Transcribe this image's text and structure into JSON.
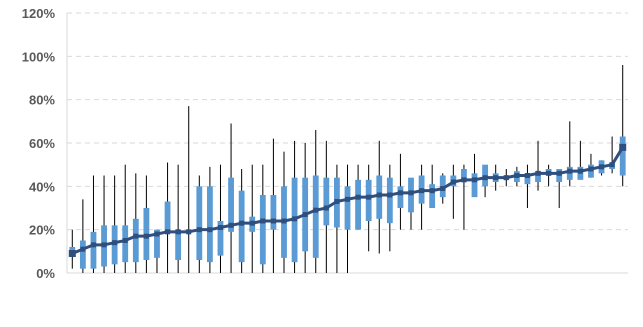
{
  "chart_data": {
    "type": "line",
    "title": "",
    "xlabel": "",
    "ylabel": "",
    "ylim": [
      0,
      120
    ],
    "y_ticks": [
      "0%",
      "20%",
      "40%",
      "60%",
      "80%",
      "100%",
      "120%"
    ],
    "y_tick_values": [
      0,
      20,
      40,
      60,
      80,
      100,
      120
    ],
    "grid": "horizontal dashed",
    "legend": "none",
    "colors": {
      "box": "#5b9bd5",
      "line": "#2f4f7f",
      "whisker": "#000000",
      "grid": "#d9d9d9",
      "axis": "#d9d9d9"
    },
    "series": [
      {
        "role": "median-line",
        "values": [
          9,
          11,
          13,
          13,
          14,
          15,
          17,
          17,
          18,
          19,
          19,
          19,
          20,
          20,
          21,
          22,
          23,
          23,
          24,
          24,
          24,
          25,
          27,
          29,
          30,
          33,
          34,
          35,
          35,
          36,
          36,
          37,
          37,
          38,
          38,
          39,
          42,
          43,
          43,
          44,
          44,
          44,
          45,
          45,
          46,
          46,
          46,
          47,
          47,
          48,
          49,
          50,
          58
        ]
      },
      {
        "role": "box-low",
        "values": [
          8,
          2,
          2,
          3,
          4,
          5,
          5,
          6,
          7,
          19,
          6,
          19,
          6,
          5,
          8,
          19,
          5,
          19,
          4,
          20,
          7,
          5,
          10,
          7,
          22,
          21,
          20,
          20,
          24,
          25,
          23,
          30,
          28,
          32,
          30,
          35,
          40,
          42,
          35,
          40,
          42,
          43,
          42,
          41,
          42,
          45,
          42,
          43,
          43,
          44,
          46,
          48,
          45
        ]
      },
      {
        "role": "box-high",
        "values": [
          12,
          15,
          19,
          22,
          22,
          22,
          25,
          30,
          20,
          33,
          20,
          20,
          40,
          40,
          24,
          44,
          38,
          26,
          36,
          36,
          40,
          44,
          44,
          45,
          44,
          44,
          40,
          43,
          43,
          45,
          44,
          40,
          44,
          45,
          41,
          45,
          45,
          48,
          46,
          50,
          46,
          45,
          47,
          46,
          47,
          48,
          48,
          49,
          49,
          50,
          52,
          51,
          63
        ]
      },
      {
        "role": "whisker-low",
        "values": [
          2,
          0,
          0,
          0,
          0,
          0,
          0,
          0,
          0,
          0,
          0,
          0,
          0,
          0,
          0,
          0,
          0,
          0,
          0,
          0,
          0,
          0,
          0,
          0,
          0,
          0,
          0,
          20,
          10,
          9,
          10,
          20,
          20,
          20,
          30,
          32,
          25,
          20,
          38,
          35,
          38,
          40,
          40,
          30,
          38,
          40,
          30,
          40,
          44,
          44,
          45,
          46,
          40
        ]
      },
      {
        "role": "whisker-high",
        "values": [
          20,
          34,
          45,
          45,
          45,
          50,
          46,
          45,
          20,
          51,
          50,
          77,
          45,
          49,
          50,
          69,
          48,
          50,
          50,
          62,
          56,
          61,
          60,
          66,
          61,
          50,
          50,
          50,
          50,
          61,
          50,
          55,
          40,
          50,
          50,
          46,
          50,
          50,
          55,
          48,
          50,
          48,
          49,
          50,
          61,
          50,
          48,
          70,
          61,
          55,
          52,
          63,
          96
        ]
      }
    ]
  }
}
